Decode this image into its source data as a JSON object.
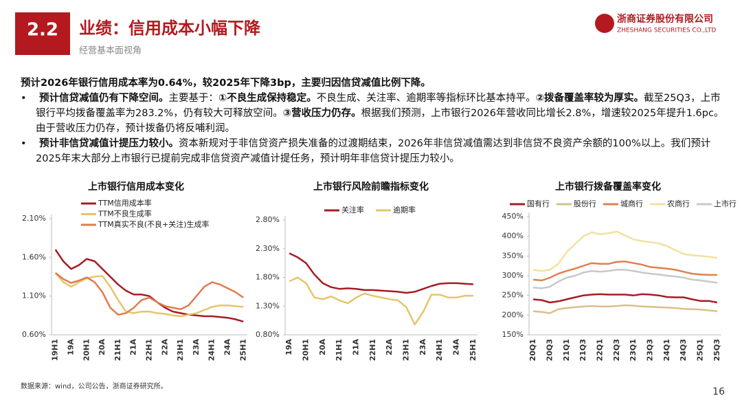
{
  "header": {
    "badge": "2.2",
    "title": "业绩：信用成本小幅下降",
    "subtitle": "经营基本面视角",
    "company": "浙商证券股份有限公司",
    "company_en": "ZHESHANG SECURITIES CO.,LTD"
  },
  "summary": "预计2026年银行信用成本率为0.64%，较2025年下降3bp，主要归因信贷减值比例下降。",
  "bullets": [
    [
      {
        "text": "预计信贷减值仍有下降空间。",
        "bold": true
      },
      {
        "text": "主要基于：",
        "bold": false
      },
      {
        "text": "①不良生成保持稳定。",
        "bold": true
      },
      {
        "text": "不良生成、关注率、逾期率等指标环比基本持平。",
        "bold": false
      },
      {
        "text": "②拨备覆盖率较为厚实。",
        "bold": true
      },
      {
        "text": "截至25Q3，上市银行平均拨备覆盖率为283.2%，仍有较大可释放空间。",
        "bold": false
      },
      {
        "text": "③营收压力仍存。",
        "bold": true
      },
      {
        "text": "根据我们预测，上市银行2026年营收同比增长2.8%，增速较2025年提升1.6pc。由于营收压力仍存，预计拨备仍将反哺利润。",
        "bold": false
      }
    ],
    [
      {
        "text": "预计非信贷减值计提压力较小。",
        "bold": true
      },
      {
        "text": "资本新规对于非信贷资产损失准备的过渡期结束，2026年非信贷减值需达到非信贷不良资产余额的100%以上。我们预计2025年末大部分上市银行已提前完成非信贷资产减值计提任务，预计明年非信贷计提压力较小。",
        "bold": false
      }
    ]
  ],
  "source": "数据来源：wind，公司公告，浙商证券研究所。",
  "page_number": "16",
  "chart_data": [
    {
      "type": "line",
      "title": "上市银行信用成本变化",
      "categories": [
        "19H1",
        null,
        "19A",
        null,
        "20H1",
        null,
        "20A",
        null,
        "21H1",
        null,
        "21A",
        null,
        "22H1",
        null,
        "22A",
        null,
        "23H1",
        null,
        "23A",
        null,
        "24H1",
        null,
        "24A",
        null,
        "25H1"
      ],
      "series": [
        {
          "name": "TTM信用成本率",
          "color": "#a51c24",
          "values": [
            1.7,
            1.55,
            1.45,
            1.5,
            1.58,
            1.55,
            1.45,
            1.35,
            1.25,
            1.17,
            1.12,
            1.12,
            1.1,
            1.02,
            0.95,
            0.9,
            0.88,
            0.86,
            0.85,
            0.84,
            0.84,
            0.83,
            0.82,
            0.8,
            0.77
          ]
        },
        {
          "name": "TTM不良生成率",
          "color": "#e6c46a",
          "values": [
            1.4,
            1.28,
            1.22,
            1.28,
            1.33,
            1.35,
            1.36,
            1.22,
            1.05,
            0.9,
            0.88,
            0.9,
            0.9,
            0.88,
            0.87,
            0.85,
            0.84,
            0.86,
            0.88,
            0.92,
            0.96,
            0.98,
            0.98,
            0.97,
            0.96
          ]
        },
        {
          "name": "TTM真实不良(不良+关注)生成率",
          "color": "#e07b4f",
          "values": [
            1.4,
            1.32,
            1.27,
            1.3,
            1.34,
            1.28,
            1.15,
            0.95,
            0.86,
            0.88,
            0.95,
            1.05,
            1.08,
            1.02,
            0.97,
            0.95,
            0.93,
            0.98,
            1.1,
            1.22,
            1.28,
            1.25,
            1.2,
            1.15,
            1.08
          ]
        }
      ],
      "ylim": [
        0.6,
        2.1
      ],
      "yticks": [
        {
          "value": 0.6,
          "label": "0.60%"
        },
        {
          "value": 1.1,
          "label": "1.10%"
        },
        {
          "value": 1.6,
          "label": "1.60%"
        },
        {
          "value": 2.1,
          "label": "2.10%"
        }
      ],
      "grid": false
    },
    {
      "type": "line",
      "title": "上市银行风险前瞻指标变化",
      "categories": [
        "19A",
        null,
        "20H1",
        null,
        "20A",
        null,
        "21H1",
        null,
        "21A",
        null,
        "22H1",
        null,
        "22A",
        null,
        "23H1",
        null,
        "23A",
        null,
        "24H1",
        null,
        "24A",
        null,
        "25H1"
      ],
      "series": [
        {
          "name": "关注率",
          "color": "#a51c24",
          "values": [
            2.22,
            2.15,
            2.05,
            1.85,
            1.7,
            1.63,
            1.6,
            1.61,
            1.6,
            1.58,
            1.58,
            1.57,
            1.56,
            1.55,
            1.53,
            1.55,
            1.6,
            1.65,
            1.69,
            1.7,
            1.7,
            1.69,
            1.68
          ]
        },
        {
          "name": "逾期率",
          "color": "#e6c46a",
          "values": [
            1.73,
            1.8,
            1.7,
            1.45,
            1.42,
            1.47,
            1.4,
            1.35,
            1.45,
            1.52,
            1.48,
            1.45,
            1.42,
            1.4,
            1.28,
            0.98,
            1.2,
            1.5,
            1.5,
            1.45,
            1.45,
            1.48,
            1.48
          ]
        }
      ],
      "ylim": [
        0.8,
        2.8
      ],
      "yticks": [
        {
          "value": 0.8,
          "label": "0.80%"
        },
        {
          "value": 1.3,
          "label": "1.30%"
        },
        {
          "value": 1.8,
          "label": "1.80%"
        },
        {
          "value": 2.3,
          "label": "2.30%"
        },
        {
          "value": 2.8,
          "label": "2.80%"
        }
      ],
      "grid": false
    },
    {
      "type": "line",
      "title": "上市银行拨备覆盖率变化",
      "categories": [
        "20Q1",
        null,
        "20Q3",
        null,
        "21Q1",
        null,
        "21Q3",
        null,
        "22Q1",
        null,
        "22Q3",
        null,
        "23Q1",
        null,
        "23Q3",
        null,
        "24Q1",
        null,
        "24Q3",
        null,
        "25Q1",
        null,
        "25Q3"
      ],
      "series": [
        {
          "name": "国有行",
          "color": "#a51c24",
          "values": [
            240,
            238,
            232,
            235,
            240,
            245,
            250,
            252,
            253,
            252,
            252,
            252,
            250,
            253,
            252,
            250,
            246,
            245,
            245,
            240,
            236,
            236,
            232
          ]
        },
        {
          "name": "股份行",
          "color": "#d8c089",
          "values": [
            210,
            208,
            205,
            215,
            218,
            220,
            222,
            223,
            222,
            222,
            223,
            225,
            224,
            222,
            221,
            220,
            219,
            218,
            216,
            215,
            214,
            212,
            210
          ]
        },
        {
          "name": "城商行",
          "color": "#e0804e",
          "values": [
            290,
            288,
            295,
            305,
            312,
            318,
            325,
            332,
            330,
            330,
            335,
            336,
            332,
            328,
            322,
            320,
            318,
            315,
            310,
            305,
            303,
            302,
            302
          ]
        },
        {
          "name": "农商行",
          "color": "#f4e0a0",
          "values": [
            315,
            312,
            315,
            330,
            360,
            380,
            400,
            410,
            405,
            408,
            412,
            402,
            392,
            388,
            385,
            382,
            375,
            365,
            355,
            352,
            350,
            348,
            345
          ]
        },
        {
          "name": "上市行",
          "color": "#c8c8c8",
          "values": [
            270,
            268,
            272,
            285,
            295,
            300,
            308,
            312,
            310,
            312,
            315,
            315,
            312,
            308,
            305,
            303,
            300,
            298,
            295,
            290,
            288,
            285,
            282
          ]
        }
      ],
      "ylim": [
        150,
        450
      ],
      "yticks": [
        {
          "value": 150,
          "label": "150%"
        },
        {
          "value": 200,
          "label": "200%"
        },
        {
          "value": 250,
          "label": "250%"
        },
        {
          "value": 300,
          "label": "300%"
        },
        {
          "value": 350,
          "label": "350%"
        },
        {
          "value": 400,
          "label": "400%"
        },
        {
          "value": 450,
          "label": "450%"
        }
      ],
      "grid": false
    }
  ]
}
